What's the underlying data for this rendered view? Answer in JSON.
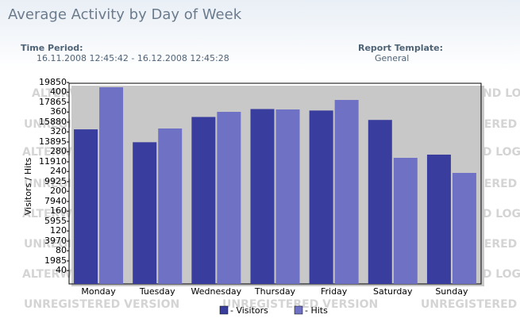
{
  "header": {
    "title": "Average Activity by Day of Week",
    "period_label": "Time Period:",
    "period": "16.11.2008 12:45:42 - 16.12.2008 12:45:28",
    "template_label": "Report Template:",
    "template": "General"
  },
  "watermark": [
    "ALTERWIND LOG ANALYZER",
    "UNREGISTERED VERSION"
  ],
  "chart_data": {
    "type": "bar",
    "y_label": "Visitors / Hits",
    "categories": [
      "Monday",
      "Tuesday",
      "Wednesday",
      "Thursday",
      "Friday",
      "Saturday",
      "Sunday"
    ],
    "series": [
      {
        "name": "- Visitors",
        "color": "#393e9e",
        "axis": "y2",
        "values": [
          325,
          299,
          350,
          366,
          363,
          344,
          274
        ]
      },
      {
        "name": "- Hits",
        "color": "#6f72c4",
        "values": [
          19374,
          15245,
          16912,
          17150,
          18103,
          12307,
          10798
        ]
      }
    ],
    "ylim": [
      -318,
      19771
    ],
    "yticks": [
      1985,
      3970,
      5955,
      7940,
      9925,
      11910,
      13895,
      15880,
      17865,
      19850
    ],
    "y2lim": [
      13,
      418
    ],
    "y2ticks": [
      40,
      80,
      120,
      160,
      200,
      240,
      280,
      320,
      360,
      400
    ]
  }
}
